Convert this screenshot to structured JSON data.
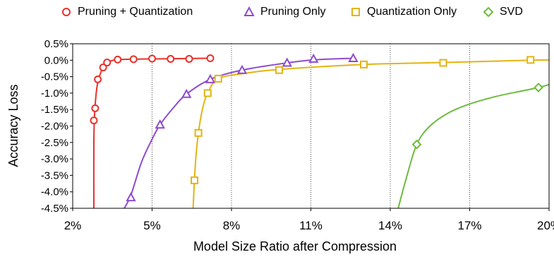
{
  "chart_data": {
    "type": "line",
    "title": "",
    "xlabel": "Model Size Ratio after Compression",
    "ylabel": "Accuracy Loss",
    "xlim": [
      2,
      20
    ],
    "ylim": [
      -4.5,
      0.5
    ],
    "x_ticks": [
      "2%",
      "5%",
      "8%",
      "11%",
      "14%",
      "17%",
      "20%"
    ],
    "x_tick_values": [
      2,
      5,
      8,
      11,
      14,
      17,
      20
    ],
    "y_ticks": [
      "0.5%",
      "0.0%",
      "-0.5%",
      "-1.0%",
      "-1.5%",
      "-2.0%",
      "-2.5%",
      "-3.0%",
      "-3.5%",
      "-4.0%",
      "-4.5%"
    ],
    "y_tick_values": [
      0.5,
      0.0,
      -0.5,
      -1.0,
      -1.5,
      -2.0,
      -2.5,
      -3.0,
      -3.5,
      -4.0,
      -4.5
    ],
    "grid": "vertical dotted",
    "legend_position": "top",
    "series": [
      {
        "name": "Pruning + Quantization",
        "color": "#e8312a",
        "marker": "circle",
        "points": [
          [
            2.8,
            -1.83
          ],
          [
            2.85,
            -1.46
          ],
          [
            2.95,
            -0.58
          ],
          [
            3.15,
            -0.22
          ],
          [
            3.3,
            -0.07
          ],
          [
            3.7,
            0.02
          ],
          [
            4.3,
            0.03
          ],
          [
            5.0,
            0.05
          ],
          [
            5.7,
            0.04
          ],
          [
            6.4,
            0.04
          ],
          [
            7.2,
            0.06
          ]
        ],
        "curve": [
          [
            2.8,
            -4.5
          ],
          [
            2.8,
            -2.5
          ],
          [
            2.83,
            -1.6
          ],
          [
            2.92,
            -0.8
          ],
          [
            3.05,
            -0.4
          ],
          [
            3.2,
            -0.15
          ],
          [
            3.45,
            -0.02
          ],
          [
            3.8,
            0.02
          ],
          [
            5.0,
            0.04
          ],
          [
            7.2,
            0.06
          ]
        ]
      },
      {
        "name": "Pruning Only",
        "color": "#8e4bcf",
        "marker": "triangle",
        "points": [
          [
            4.2,
            -4.17
          ],
          [
            5.3,
            -1.96
          ],
          [
            6.3,
            -1.03
          ],
          [
            7.2,
            -0.58
          ],
          [
            8.4,
            -0.3
          ],
          [
            10.1,
            -0.08
          ],
          [
            11.1,
            0.04
          ],
          [
            12.6,
            0.06
          ]
        ],
        "curve": [
          [
            3.95,
            -4.5
          ],
          [
            4.2,
            -4.1
          ],
          [
            4.6,
            -3.1
          ],
          [
            5.0,
            -2.4
          ],
          [
            5.3,
            -1.96
          ],
          [
            5.8,
            -1.45
          ],
          [
            6.3,
            -1.03
          ],
          [
            7.2,
            -0.58
          ],
          [
            8.4,
            -0.3
          ],
          [
            10.1,
            -0.08
          ],
          [
            11.1,
            0.01
          ],
          [
            12.6,
            0.06
          ]
        ]
      },
      {
        "name": "Quantization Only",
        "color": "#e3b40f",
        "marker": "square",
        "points": [
          [
            6.6,
            -3.65
          ],
          [
            6.75,
            -2.21
          ],
          [
            7.1,
            -1.0
          ],
          [
            7.5,
            -0.56
          ],
          [
            9.8,
            -0.3
          ],
          [
            13.0,
            -0.13
          ],
          [
            16.0,
            -0.08
          ],
          [
            19.3,
            0.01
          ]
        ],
        "curve": [
          [
            6.55,
            -4.5
          ],
          [
            6.6,
            -3.65
          ],
          [
            6.66,
            -2.9
          ],
          [
            6.75,
            -2.21
          ],
          [
            6.9,
            -1.5
          ],
          [
            7.1,
            -1.0
          ],
          [
            7.5,
            -0.56
          ],
          [
            8.5,
            -0.4
          ],
          [
            9.8,
            -0.28
          ],
          [
            13.0,
            -0.13
          ],
          [
            16.0,
            -0.07
          ],
          [
            19.3,
            0.0
          ],
          [
            20.0,
            0.01
          ]
        ]
      },
      {
        "name": "SVD",
        "color": "#6dbb3c",
        "marker": "diamond",
        "points": [
          [
            15.0,
            -2.56
          ],
          [
            19.6,
            -0.83
          ]
        ],
        "curve": [
          [
            14.3,
            -4.5
          ],
          [
            14.6,
            -3.6
          ],
          [
            15.0,
            -2.56
          ],
          [
            15.5,
            -2.0
          ],
          [
            16.2,
            -1.6
          ],
          [
            17.0,
            -1.33
          ],
          [
            18.0,
            -1.1
          ],
          [
            19.0,
            -0.93
          ],
          [
            19.6,
            -0.83
          ],
          [
            20.0,
            -0.74
          ]
        ]
      }
    ]
  }
}
